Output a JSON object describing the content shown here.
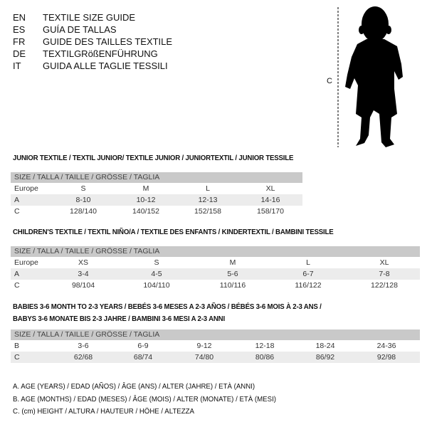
{
  "header": {
    "languages": [
      {
        "code": "EN",
        "title": "TEXTILE SIZE GUIDE"
      },
      {
        "code": "ES",
        "title": "GUÍA DE TALLAS"
      },
      {
        "code": "FR",
        "title": "GUIDE DES TAILLES TEXTILE"
      },
      {
        "code": "DE",
        "title": "TEXTILGRößENFÜHRUNG"
      },
      {
        "code": "IT",
        "title": "GUIDA ALLE TAGLIE TESSILI"
      }
    ]
  },
  "figure": {
    "measure_label": "C",
    "icon": "child-silhouette"
  },
  "sections": [
    {
      "title": "JUNIOR TEXTILE / TEXTIL JUNIOR/ TEXTILE JUNIOR / JUNIORTEXTIL / JUNIOR TESSILE",
      "header": "SIZE / TALLA / TAILLE / GRÖSSE / TAGLIA",
      "rows": [
        {
          "label": "Europe",
          "values": [
            "S",
            "M",
            "L",
            "XL"
          ]
        },
        {
          "label": "A",
          "values": [
            "8-10",
            "10-12",
            "12-13",
            "14-16"
          ]
        },
        {
          "label": "C",
          "values": [
            "128/140",
            "140/152",
            "152/158",
            "158/170"
          ]
        }
      ]
    },
    {
      "title": "CHILDREN'S TEXTILE / TEXTIL NIÑO/A / TEXTILE DES ENFANTS / KINDERTEXTIL / BAMBINI TESSILE",
      "header": "SIZE / TALLA / TAILLE / GRÖSSE / TAGLIA",
      "rows": [
        {
          "label": "Europe",
          "values": [
            "XS",
            "S",
            "M",
            "L",
            "XL"
          ]
        },
        {
          "label": "A",
          "values": [
            "3-4",
            "4-5",
            "5-6",
            "6-7",
            "7-8"
          ]
        },
        {
          "label": "C",
          "values": [
            "98/104",
            "104/110",
            "110/116",
            "116/122",
            "122/128"
          ]
        }
      ]
    },
    {
      "title": "BABIES 3-6 MONTH TO 2-3 YEARS / BEBÉS 3-6 MESES A 2-3 AÑOS / BÉBÉS 3-6 MOIS À 2-3 ANS /",
      "title2": "BABYS 3-6 MONATE BIS 2-3 JAHRE / BAMBINI 3-6 MESI A 2-3 ANNI",
      "header": "SIZE / TALLA / TAILLE / GRÖSSE / TAGLIA",
      "rows": [
        {
          "label": "B",
          "values": [
            "3-6",
            "6-9",
            "9-12",
            "12-18",
            "18-24",
            "24-36"
          ]
        },
        {
          "label": "C",
          "values": [
            "62/68",
            "68/74",
            "74/80",
            "80/86",
            "86/92",
            "92/98"
          ]
        }
      ]
    }
  ],
  "legend": [
    "A. AGE (YEARS) / EDAD (AÑOS) / ÂGE (ANS) / ALTER (JAHRE) / ETÀ (ANNI)",
    "B. AGE (MONTHS) / EDAD (MESES) / ÂGE (MOIS) / ALTER (MONATE) / ETÀ (MESI)",
    "C. (cm) HEIGHT / ALTURA / HAUTEUR / HÖHE / ALTEZZA"
  ]
}
